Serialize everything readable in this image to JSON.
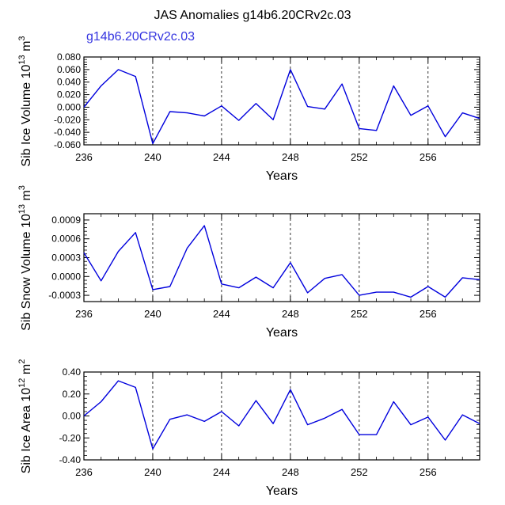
{
  "title": "JAS Anomalies g14b6.20CRv2c.03",
  "subtitle": "g14b6.20CRv2c.03",
  "colors": {
    "line": "#0000dd",
    "subtitle": "#3535e0",
    "axis": "#000000"
  },
  "chart_data": [
    {
      "type": "line",
      "title": "JAS Anomalies g14b6.20CRv2c.03",
      "xlabel": "Years",
      "ylabel_text": "Sib Ice Volume 10",
      "ylabel_exp": "13",
      "ylabel_unit": "m",
      "ylabel_unit_exp": "3",
      "xlim": [
        236,
        259
      ],
      "ylim": [
        -0.06,
        0.08
      ],
      "xticks": [
        236,
        240,
        244,
        248,
        252,
        256
      ],
      "xtick_labels": [
        "236",
        "240",
        "244",
        "248",
        "252",
        "256"
      ],
      "yticks": [
        -0.06,
        -0.04,
        -0.02,
        0.0,
        0.02,
        0.04,
        0.06,
        0.08
      ],
      "ytick_labels": [
        "-0.060",
        "-0.040",
        "-0.020",
        "0.000",
        "0.020",
        "0.040",
        "0.060",
        "0.080"
      ],
      "x": [
        236,
        237,
        238,
        239,
        240,
        241,
        242,
        243,
        244,
        245,
        246,
        247,
        248,
        249,
        250,
        251,
        252,
        253,
        254,
        255,
        256,
        257,
        258,
        259
      ],
      "values": [
        0.0,
        0.034,
        0.06,
        0.049,
        -0.058,
        -0.007,
        -0.009,
        -0.014,
        0.002,
        -0.021,
        0.006,
        -0.02,
        0.06,
        0.001,
        -0.003,
        0.037,
        -0.034,
        -0.037,
        0.034,
        -0.013,
        0.002,
        -0.047,
        -0.009,
        -0.018
      ],
      "vlines": [
        240,
        244,
        248,
        252,
        256
      ]
    },
    {
      "type": "line",
      "xlabel": "Years",
      "ylabel_text": "Sib Snow Volume 10",
      "ylabel_exp": "13",
      "ylabel_unit": "m",
      "ylabel_unit_exp": "3",
      "xlim": [
        236,
        259
      ],
      "ylim": [
        -0.0004,
        0.001
      ],
      "xticks": [
        236,
        240,
        244,
        248,
        252,
        256
      ],
      "xtick_labels": [
        "236",
        "240",
        "244",
        "248",
        "252",
        "256"
      ],
      "yticks": [
        -0.0003,
        0.0,
        0.0003,
        0.0006,
        0.0009
      ],
      "ytick_labels": [
        "-0.0003",
        "0.0000",
        "0.0003",
        "0.0006",
        "0.0009"
      ],
      "x": [
        236,
        237,
        238,
        239,
        240,
        241,
        242,
        243,
        244,
        245,
        246,
        247,
        248,
        249,
        250,
        251,
        252,
        253,
        254,
        255,
        256,
        257,
        258,
        259
      ],
      "values": [
        0.00038,
        -7e-05,
        0.0004,
        0.0007,
        -0.00021,
        -0.00016,
        0.00045,
        0.00081,
        -0.00012,
        -0.00018,
        -1e-05,
        -0.00018,
        0.00022,
        -0.00026,
        -3e-05,
        3e-05,
        -0.0003,
        -0.00025,
        -0.00025,
        -0.00033,
        -0.00016,
        -0.00033,
        -2e-05,
        -5e-05
      ],
      "vlines": [
        240,
        244,
        248,
        252,
        256
      ]
    },
    {
      "type": "line",
      "xlabel": "Years",
      "ylabel_text": "Sib Ice Area 10",
      "ylabel_exp": "12",
      "ylabel_unit": "m",
      "ylabel_unit_exp": "2",
      "xlim": [
        236,
        259
      ],
      "ylim": [
        -0.4,
        0.4
      ],
      "xticks": [
        236,
        240,
        244,
        248,
        252,
        256
      ],
      "xtick_labels": [
        "236",
        "240",
        "244",
        "248",
        "252",
        "256"
      ],
      "yticks": [
        -0.4,
        -0.2,
        0.0,
        0.2,
        0.4
      ],
      "ytick_labels": [
        "-0.40",
        "-0.20",
        "0.00",
        "0.20",
        "0.40"
      ],
      "x": [
        236,
        237,
        238,
        239,
        240,
        241,
        242,
        243,
        244,
        245,
        246,
        247,
        248,
        249,
        250,
        251,
        252,
        253,
        254,
        255,
        256,
        257,
        258,
        259
      ],
      "values": [
        0.0,
        0.13,
        0.32,
        0.26,
        -0.3,
        -0.03,
        0.01,
        -0.05,
        0.04,
        -0.09,
        0.14,
        -0.07,
        0.24,
        -0.08,
        -0.02,
        0.06,
        -0.17,
        -0.17,
        0.13,
        -0.08,
        -0.01,
        -0.22,
        0.01,
        -0.07
      ],
      "vlines": [
        240,
        244,
        248,
        252,
        256
      ]
    }
  ]
}
